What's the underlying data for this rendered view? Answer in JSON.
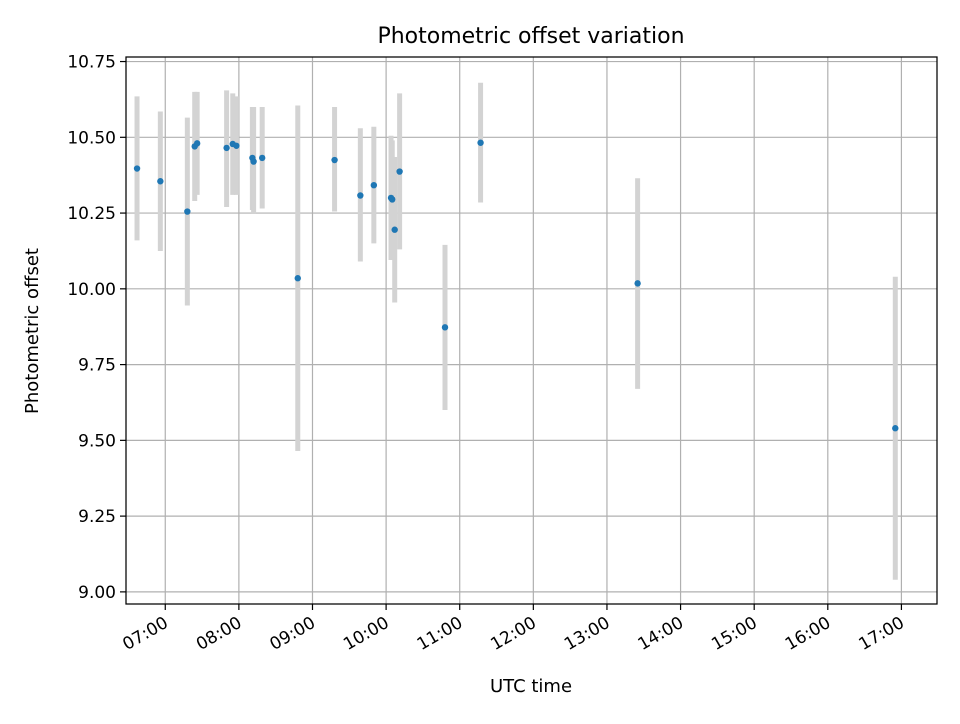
{
  "chart_data": {
    "type": "scatter",
    "title": "Photometric offset variation",
    "xlabel": "UTC time",
    "ylabel": "Photometric offset",
    "xlim": [
      "06:28",
      "17:29"
    ],
    "ylim": [
      8.96,
      10.765
    ],
    "x_ticks": [
      "07:00",
      "08:00",
      "09:00",
      "10:00",
      "11:00",
      "12:00",
      "13:00",
      "14:00",
      "15:00",
      "16:00",
      "17:00"
    ],
    "y_ticks": [
      9.0,
      9.25,
      9.5,
      9.75,
      10.0,
      10.25,
      10.5,
      10.75
    ],
    "y_tick_labels": [
      "9.00",
      "9.25",
      "9.50",
      "9.75",
      "10.00",
      "10.25",
      "10.50",
      "10.75"
    ],
    "grid": true,
    "colors": {
      "point": "#1f77b4",
      "errorbar": "#d3d3d3",
      "grid": "#b0b0b0"
    },
    "points": [
      {
        "x": "06:37",
        "y": 10.397,
        "err_low": 10.16,
        "err_high": 10.635
      },
      {
        "x": "06:56",
        "y": 10.355,
        "err_low": 10.125,
        "err_high": 10.585
      },
      {
        "x": "07:18",
        "y": 10.255,
        "err_low": 9.945,
        "err_high": 10.565
      },
      {
        "x": "07:24",
        "y": 10.47,
        "err_low": 10.29,
        "err_high": 10.65
      },
      {
        "x": "07:26",
        "y": 10.48,
        "err_low": 10.31,
        "err_high": 10.65
      },
      {
        "x": "07:50",
        "y": 10.465,
        "err_low": 10.27,
        "err_high": 10.655
      },
      {
        "x": "07:55",
        "y": 10.478,
        "err_low": 10.31,
        "err_high": 10.645
      },
      {
        "x": "07:58",
        "y": 10.472,
        "err_low": 10.31,
        "err_high": 10.635
      },
      {
        "x": "08:11",
        "y": 10.432,
        "err_low": 10.26,
        "err_high": 10.6
      },
      {
        "x": "08:12",
        "y": 10.42,
        "err_low": 10.25,
        "err_high": 10.6
      },
      {
        "x": "08:19",
        "y": 10.432,
        "err_low": 10.265,
        "err_high": 10.6
      },
      {
        "x": "08:48",
        "y": 10.035,
        "err_low": 9.465,
        "err_high": 10.605
      },
      {
        "x": "09:18",
        "y": 10.425,
        "err_low": 10.255,
        "err_high": 10.6
      },
      {
        "x": "09:39",
        "y": 10.308,
        "err_low": 10.09,
        "err_high": 10.53
      },
      {
        "x": "09:50",
        "y": 10.342,
        "err_low": 10.15,
        "err_high": 10.535
      },
      {
        "x": "10:04",
        "y": 10.3,
        "err_low": 10.095,
        "err_high": 10.505
      },
      {
        "x": "10:05",
        "y": 10.295,
        "err_low": 10.1,
        "err_high": 10.49
      },
      {
        "x": "10:07",
        "y": 10.195,
        "err_low": 9.955,
        "err_high": 10.435
      },
      {
        "x": "10:11",
        "y": 10.387,
        "err_low": 10.13,
        "err_high": 10.645
      },
      {
        "x": "10:48",
        "y": 9.873,
        "err_low": 9.6,
        "err_high": 10.145
      },
      {
        "x": "11:17",
        "y": 10.482,
        "err_low": 10.285,
        "err_high": 10.68
      },
      {
        "x": "13:25",
        "y": 10.018,
        "err_low": 9.67,
        "err_high": 10.365
      },
      {
        "x": "16:55",
        "y": 9.54,
        "err_low": 9.04,
        "err_high": 10.04
      }
    ]
  }
}
